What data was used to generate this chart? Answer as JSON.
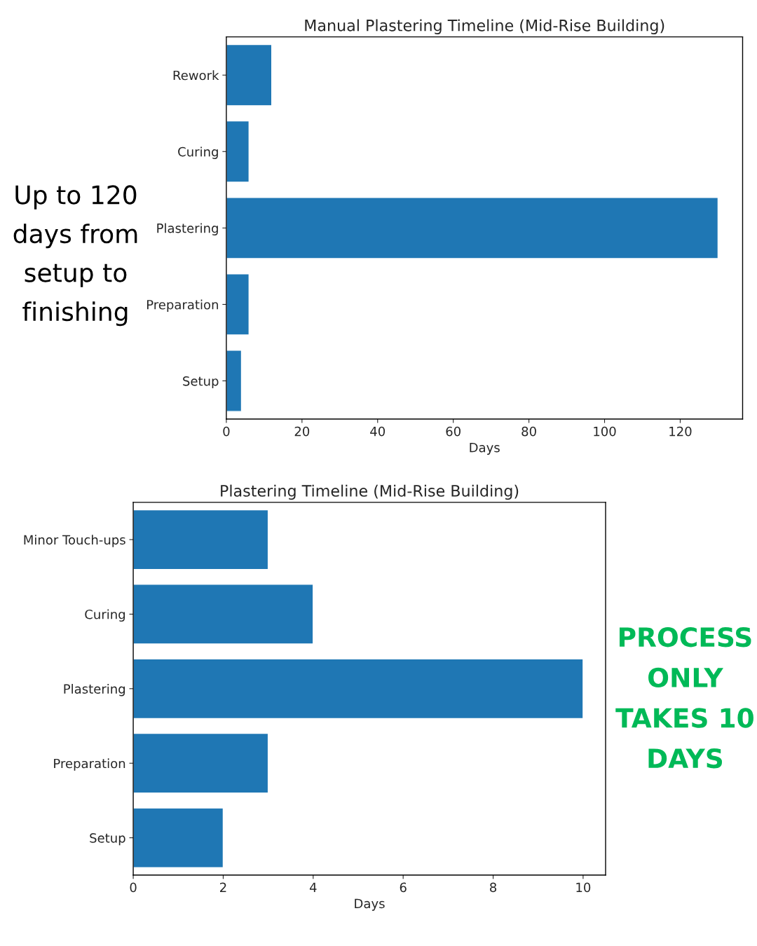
{
  "chart_data": [
    {
      "type": "bar",
      "orientation": "horizontal",
      "title": "Manual Plastering Timeline (Mid-Rise Building)",
      "xlabel": "Days",
      "categories": [
        "Rework",
        "Curing",
        "Plastering",
        "Preparation",
        "Setup"
      ],
      "series": [
        {
          "color": "#1f77b4",
          "values": [
            12,
            6,
            130,
            6,
            4
          ]
        }
      ],
      "xlim": [
        0,
        136.5
      ],
      "xticks": [
        0,
        20,
        40,
        60,
        80,
        100,
        120
      ],
      "annotations": [
        "Up to 120 days from setup to finishing"
      ]
    },
    {
      "type": "bar",
      "orientation": "horizontal",
      "title": "Plastering Timeline (Mid-Rise Building)",
      "xlabel": "Days",
      "categories": [
        "Minor Touch-ups",
        "Curing",
        "Plastering",
        "Preparation",
        "Setup"
      ],
      "series": [
        {
          "color": "#1f77b4",
          "values": [
            3,
            4,
            10,
            3,
            2
          ]
        }
      ],
      "xlim": [
        0,
        10.5
      ],
      "xticks": [
        0,
        2,
        4,
        6,
        8,
        10
      ],
      "annotations": [
        "PROCESS ONLY TAKES 10 DAYS"
      ]
    }
  ]
}
